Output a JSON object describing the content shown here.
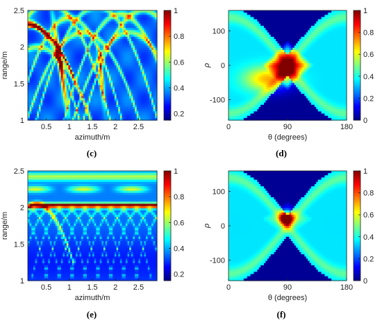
{
  "chart_data": [
    {
      "type": "heatmap",
      "panel": "c",
      "caption": "(c)",
      "xlabel": "azimuth/m",
      "ylabel": "range/m",
      "xlim": [
        0.1,
        2.9
      ],
      "ylim": [
        1,
        2.5
      ],
      "xticks": [
        "0.5",
        "1",
        "1.5",
        "2",
        "2.5"
      ],
      "yticks": [
        "1",
        "1.5",
        "2",
        "2.5"
      ],
      "colorbar": {
        "min": 0.15,
        "max": 1,
        "ticks": [
          "0.2",
          "0.4",
          "0.6",
          "0.8",
          "1"
        ]
      },
      "colormap": "jet",
      "description": "Back-projection image with several bright hyperbolic arcs; strong red feature near azimuth 0.8–1.0 m, range 1.3–2.1 m"
    },
    {
      "type": "heatmap",
      "panel": "d",
      "caption": "(d)",
      "xlabel": "θ (degrees)",
      "ylabel": "ρ",
      "xlim": [
        0,
        180
      ],
      "ylim": [
        -160,
        160
      ],
      "xticks": [
        "0",
        "90",
        "180"
      ],
      "yticks": [
        "100",
        "0",
        "-100"
      ],
      "colorbar": {
        "min": 0,
        "max": 1,
        "ticks": [
          "0",
          "0.2",
          "0.4",
          "0.6",
          "0.8",
          "1"
        ]
      },
      "colormap": "jet",
      "description": "Hough transform with a large red diamond centred at θ=90°, ρ≈0"
    },
    {
      "type": "heatmap",
      "panel": "e",
      "caption": "(e)",
      "xlabel": "azimuth/m",
      "ylabel": "range/m",
      "xlim": [
        0.1,
        2.9
      ],
      "ylim": [
        1,
        2.5
      ],
      "xticks": [
        "0.5",
        "1",
        "1.5",
        "2",
        "2.5"
      ],
      "yticks": [
        "1",
        "1.5",
        "2",
        "2.5"
      ],
      "colorbar": {
        "min": 0.15,
        "max": 1,
        "ticks": [
          "0.2",
          "0.4",
          "0.6",
          "0.8",
          "1"
        ]
      },
      "colormap": "jet",
      "description": "Back-projection image with a bright horizontal line at range ≈2.0 m and weaker arcs below"
    },
    {
      "type": "heatmap",
      "panel": "f",
      "caption": "(f)",
      "xlabel": "θ (degrees)",
      "ylabel": "ρ",
      "xlim": [
        0,
        180
      ],
      "ylim": [
        -160,
        160
      ],
      "xticks": [
        "0",
        "90",
        "180"
      ],
      "yticks": [
        "100",
        "0",
        "-100"
      ],
      "colorbar": {
        "min": 0,
        "max": 1,
        "ticks": [
          "0",
          "0.2",
          "0.4",
          "0.6",
          "0.8",
          "1"
        ]
      },
      "colormap": "jet",
      "description": "Hough transform with a compact red peak at θ=90°, ρ≈20"
    }
  ]
}
